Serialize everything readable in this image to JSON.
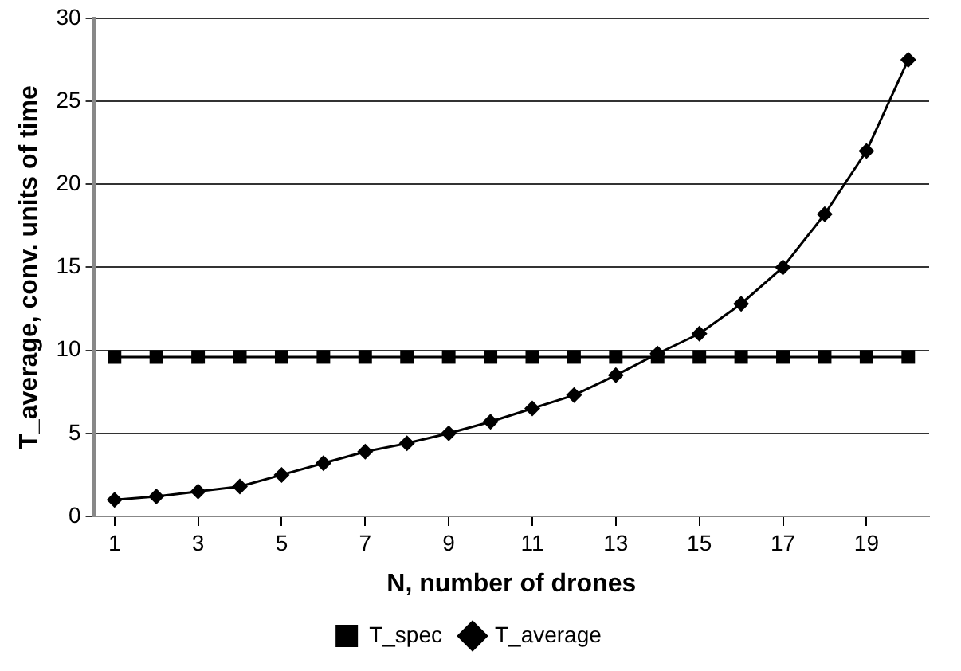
{
  "chart_data": {
    "type": "line",
    "xlabel": "N, number of drones",
    "ylabel": "T_average, conv. units of time",
    "x": [
      1,
      2,
      3,
      4,
      5,
      6,
      7,
      8,
      9,
      10,
      11,
      12,
      13,
      14,
      15,
      16,
      17,
      18,
      19,
      20
    ],
    "xlim": [
      0.5,
      20.5
    ],
    "xticks": [
      1,
      3,
      5,
      7,
      9,
      11,
      13,
      15,
      17,
      19
    ],
    "series": [
      {
        "name": "T_average",
        "color": "#000000",
        "marker": "diamond",
        "values": [
          1.0,
          1.2,
          1.5,
          1.8,
          2.5,
          3.2,
          3.9,
          4.4,
          5.0,
          5.7,
          6.5,
          7.3,
          8.5,
          9.8,
          11.0,
          12.8,
          15.0,
          18.2,
          22.0,
          27.5
        ]
      },
      {
        "name": "T_spec",
        "color": "#000000",
        "marker": "square",
        "values": [
          9.6,
          9.6,
          9.6,
          9.6,
          9.6,
          9.6,
          9.6,
          9.6,
          9.6,
          9.6,
          9.6,
          9.6,
          9.6,
          9.6,
          9.6,
          9.6,
          9.6,
          9.6,
          9.6,
          9.6
        ]
      }
    ],
    "ylim": [
      0,
      30
    ],
    "yticks": [
      0,
      5,
      10,
      15,
      20,
      25,
      30
    ],
    "grid": "y",
    "legend": "bottom"
  }
}
